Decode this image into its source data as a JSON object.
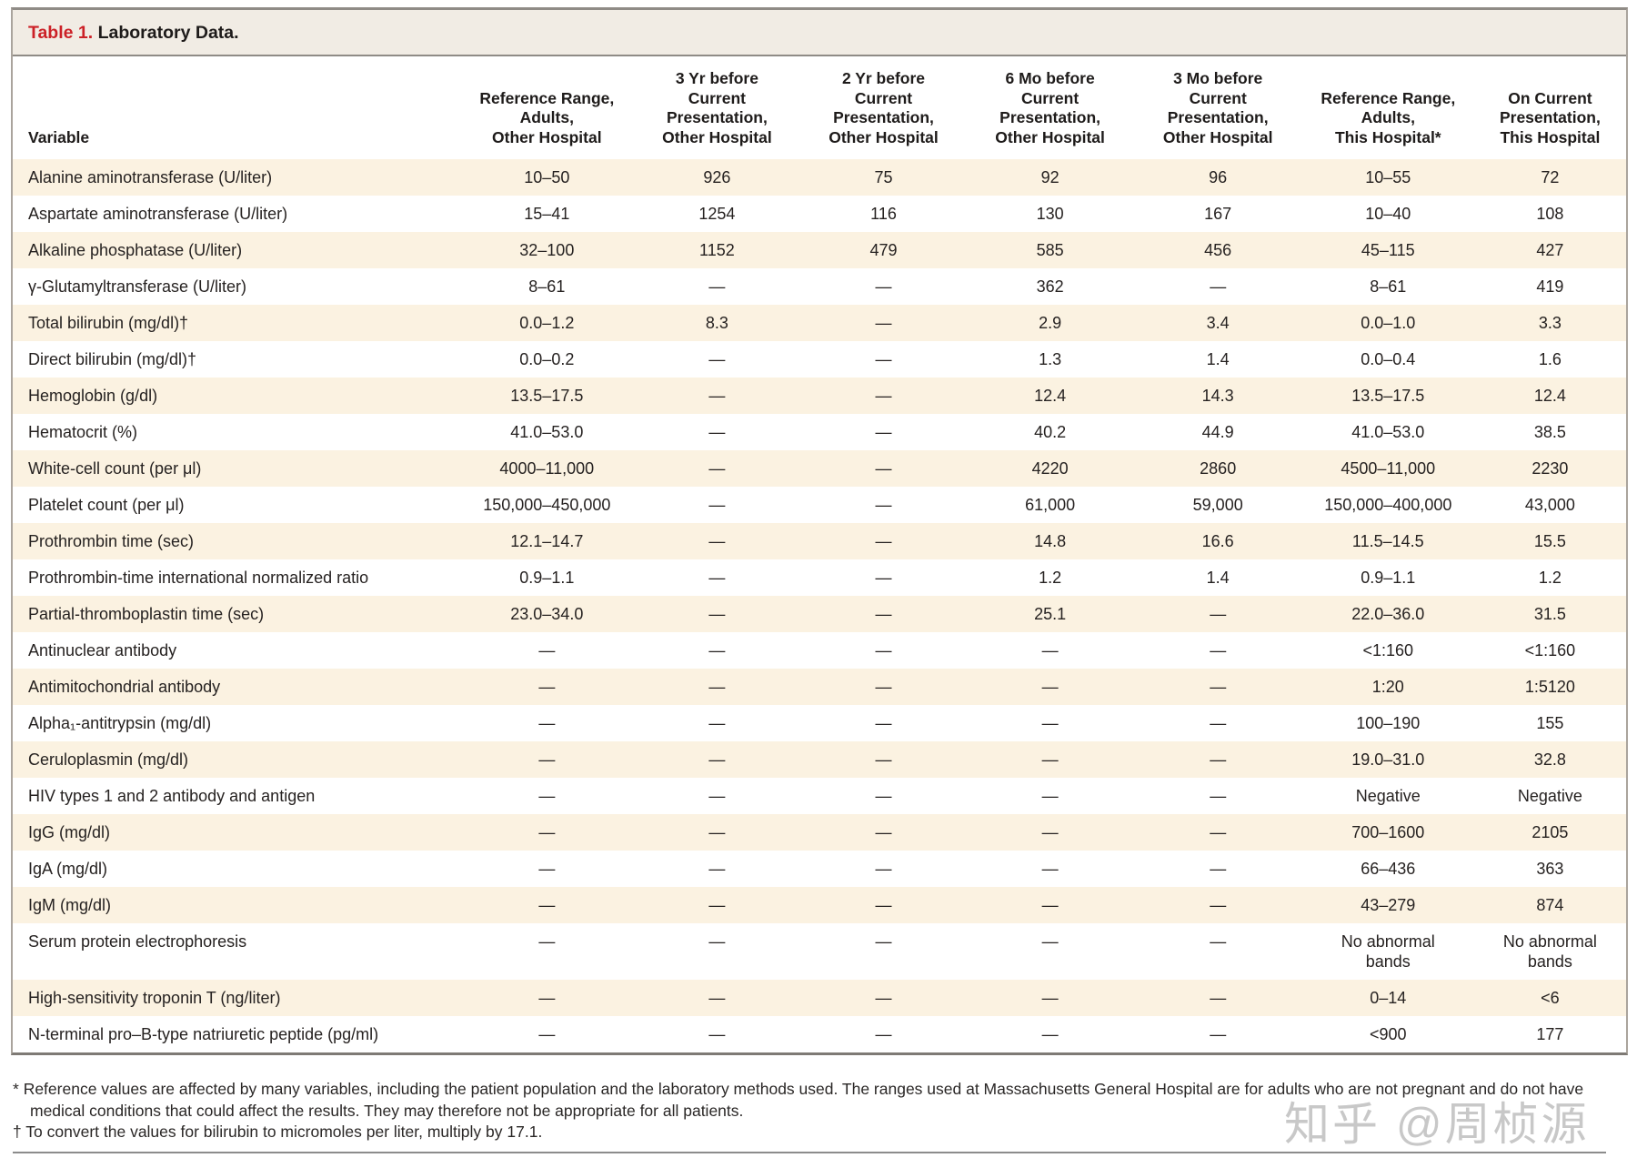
{
  "table": {
    "title_label": "Table 1.",
    "title_text": "Laboratory Data.",
    "columns": [
      "Variable",
      "Reference Range,\nAdults,\nOther Hospital",
      "3 Yr before\nCurrent\nPresentation,\nOther Hospital",
      "2 Yr before\nCurrent\nPresentation,\nOther Hospital",
      "6 Mo before\nCurrent\nPresentation,\nOther Hospital",
      "3 Mo before\nCurrent\nPresentation,\nOther Hospital",
      "Reference Range,\nAdults,\nThis Hospital*",
      "On Current\nPresentation,\nThis Hospital"
    ],
    "rows": [
      {
        "variable": "Alanine aminotransferase (U/liter)",
        "values": [
          "10–50",
          "926",
          "75",
          "92",
          "96",
          "10–55",
          "72"
        ]
      },
      {
        "variable": "Aspartate aminotransferase (U/liter)",
        "values": [
          "15–41",
          "1254",
          "116",
          "130",
          "167",
          "10–40",
          "108"
        ]
      },
      {
        "variable": "Alkaline phosphatase (U/liter)",
        "values": [
          "32–100",
          "1152",
          "479",
          "585",
          "456",
          "45–115",
          "427"
        ]
      },
      {
        "variable": "γ-Glutamyltransferase (U/liter)",
        "values": [
          "8–61",
          "—",
          "—",
          "362",
          "—",
          "8–61",
          "419"
        ]
      },
      {
        "variable": "Total bilirubin (mg/dl)†",
        "values": [
          "0.0–1.2",
          "8.3",
          "—",
          "2.9",
          "3.4",
          "0.0–1.0",
          "3.3"
        ]
      },
      {
        "variable": "Direct bilirubin (mg/dl)†",
        "values": [
          "0.0–0.2",
          "—",
          "—",
          "1.3",
          "1.4",
          "0.0–0.4",
          "1.6"
        ]
      },
      {
        "variable": "Hemoglobin (g/dl)",
        "values": [
          "13.5–17.5",
          "—",
          "—",
          "12.4",
          "14.3",
          "13.5–17.5",
          "12.4"
        ]
      },
      {
        "variable": "Hematocrit (%)",
        "values": [
          "41.0–53.0",
          "—",
          "—",
          "40.2",
          "44.9",
          "41.0–53.0",
          "38.5"
        ]
      },
      {
        "variable": "White-cell count (per μl)",
        "values": [
          "4000–11,000",
          "—",
          "—",
          "4220",
          "2860",
          "4500–11,000",
          "2230"
        ]
      },
      {
        "variable": "Platelet count (per μl)",
        "values": [
          "150,000–450,000",
          "—",
          "—",
          "61,000",
          "59,000",
          "150,000–400,000",
          "43,000"
        ]
      },
      {
        "variable": "Prothrombin time (sec)",
        "values": [
          "12.1–14.7",
          "—",
          "—",
          "14.8",
          "16.6",
          "11.5–14.5",
          "15.5"
        ]
      },
      {
        "variable": "Prothrombin-time international normalized ratio",
        "values": [
          "0.9–1.1",
          "—",
          "—",
          "1.2",
          "1.4",
          "0.9–1.1",
          "1.2"
        ]
      },
      {
        "variable": "Partial-thromboplastin time (sec)",
        "values": [
          "23.0–34.0",
          "—",
          "—",
          "25.1",
          "—",
          "22.0–36.0",
          "31.5"
        ]
      },
      {
        "variable": "Antinuclear antibody",
        "values": [
          "—",
          "—",
          "—",
          "—",
          "—",
          "<1:160",
          "<1:160"
        ]
      },
      {
        "variable": "Antimitochondrial antibody",
        "values": [
          "—",
          "—",
          "—",
          "—",
          "—",
          "1:20",
          "1:5120"
        ]
      },
      {
        "variable": "Alpha₁-antitrypsin (mg/dl)",
        "values": [
          "—",
          "—",
          "—",
          "—",
          "—",
          "100–190",
          "155"
        ]
      },
      {
        "variable": "Ceruloplasmin (mg/dl)",
        "values": [
          "—",
          "—",
          "—",
          "—",
          "—",
          "19.0–31.0",
          "32.8"
        ]
      },
      {
        "variable": "HIV types 1 and 2 antibody and antigen",
        "values": [
          "—",
          "—",
          "—",
          "—",
          "—",
          "Negative",
          "Negative"
        ]
      },
      {
        "variable": "IgG (mg/dl)",
        "values": [
          "—",
          "—",
          "—",
          "—",
          "—",
          "700–1600",
          "2105"
        ]
      },
      {
        "variable": "IgA (mg/dl)",
        "values": [
          "—",
          "—",
          "—",
          "—",
          "—",
          "66–436",
          "363"
        ]
      },
      {
        "variable": "IgM (mg/dl)",
        "values": [
          "—",
          "—",
          "—",
          "—",
          "—",
          "43–279",
          "874"
        ]
      },
      {
        "variable": "Serum protein electrophoresis",
        "values": [
          "—",
          "—",
          "—",
          "—",
          "—",
          "No abnormal\nbands",
          "No abnormal\nbands"
        ]
      },
      {
        "variable": "High-sensitivity troponin T (ng/liter)",
        "values": [
          "—",
          "—",
          "—",
          "—",
          "—",
          "0–14",
          "<6"
        ]
      },
      {
        "variable": "N-terminal pro–B-type natriuretic peptide (pg/ml)",
        "values": [
          "—",
          "—",
          "—",
          "—",
          "—",
          "<900",
          "177"
        ]
      }
    ]
  },
  "footnotes": [
    {
      "marker": "*",
      "text": "Reference values are affected by many variables, including the patient population and the laboratory methods used. The ranges used at Massachusetts General Hospital are for adults who are not pregnant and do not have medical conditions that could affect the results. They may therefore not be appropriate for all patients."
    },
    {
      "marker": "†",
      "text": "To convert the values for bilirubin to micromoles per liter, multiply by 17.1."
    }
  ],
  "watermark": "知乎 @周桢源",
  "colors": {
    "title_red": "#cc2127",
    "row_stripe": "#fbf2e1",
    "title_band_bg": "#f1ece4",
    "border_gray": "#aaa49d"
  }
}
